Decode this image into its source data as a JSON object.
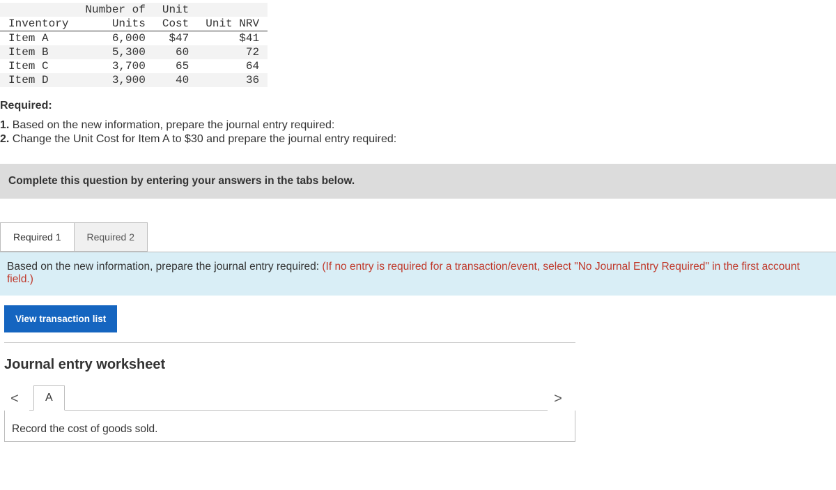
{
  "inventory_table": {
    "headers_line1": [
      "",
      "Number of",
      "Unit",
      ""
    ],
    "headers_line2": [
      "Inventory",
      "Units",
      "Cost",
      "Unit NRV"
    ],
    "rows": [
      [
        "Item A",
        "6,000",
        "$47",
        "$41"
      ],
      [
        "Item B",
        "5,300",
        "60",
        "72"
      ],
      [
        "Item C",
        "3,700",
        "65",
        "64"
      ],
      [
        "Item D",
        "3,900",
        "40",
        "36"
      ]
    ]
  },
  "required_heading": "Required:",
  "requirements": [
    {
      "num": "1.",
      "text": "Based on the new information, prepare the journal entry required:"
    },
    {
      "num": "2.",
      "text": "Change the Unit Cost for Item A to $30 and prepare the journal entry required:"
    }
  ],
  "instruction_bar": "Complete this question by entering your answers in the tabs below.",
  "tabs": {
    "items": [
      "Required 1",
      "Required 2"
    ],
    "active_index": 0
  },
  "tab_content": {
    "main": "Based on the new information, prepare the journal entry required: ",
    "hint": "(If no entry is required for a transaction/event, select \"No Journal Entry Required\" in the first account field.)"
  },
  "view_button": "View transaction list",
  "worksheet": {
    "title": "Journal entry worksheet",
    "nav_prev": "<",
    "nav_next": ">",
    "tabs": [
      "A"
    ],
    "body": "Record the cost of goods sold."
  }
}
